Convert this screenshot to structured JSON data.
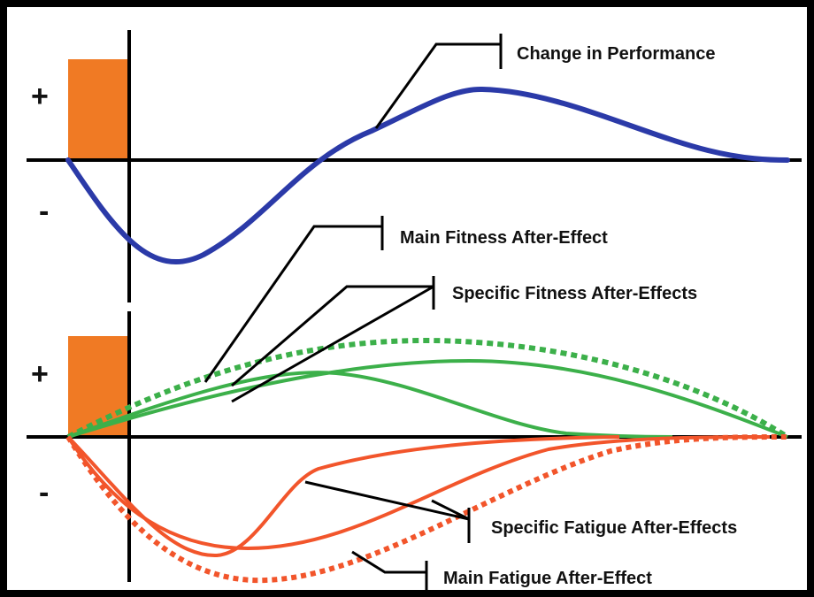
{
  "labels": {
    "change_in_performance": "Change in Performance",
    "main_fitness": "Main Fitness After-Effect",
    "specific_fitness": "Specific Fitness After-Effects",
    "specific_fatigue": "Specific Fatigue After-Effects",
    "main_fatigue": "Main Fatigue After-Effect"
  },
  "signs": {
    "top_plus": "+",
    "top_minus": "-",
    "bottom_plus": "+",
    "bottom_minus": "-"
  },
  "colors": {
    "performance": "#2b3aa8",
    "fitness": "#3cb04a",
    "fatigue": "#f2552b",
    "load_block": "#f07a24",
    "frame": "#000000"
  }
}
